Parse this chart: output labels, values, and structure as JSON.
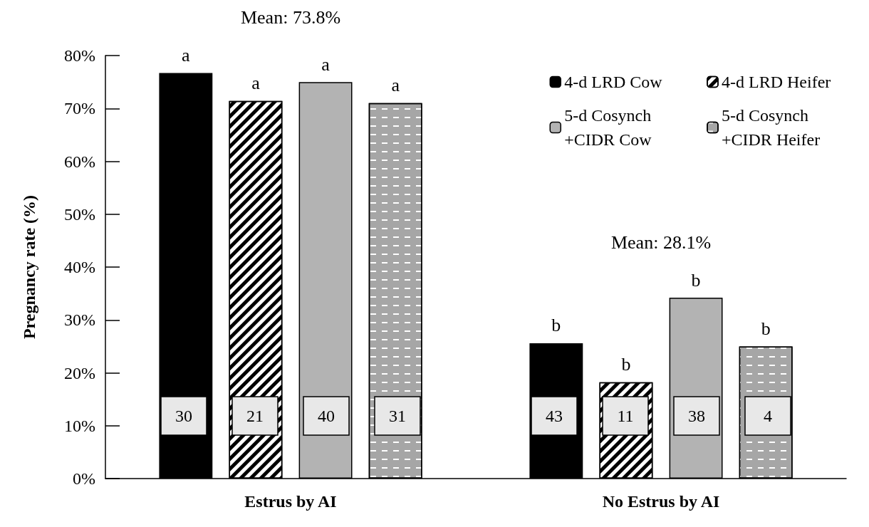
{
  "chart_data": {
    "type": "bar",
    "ylabel": "Pregnancy rate (%)",
    "categories": [
      "Estrus by AI",
      "No Estrus by AI"
    ],
    "series": [
      {
        "name": "4-d LRD Cow",
        "color": "#000000",
        "values": [
          76.7,
          25.6
        ],
        "value_labels": [
          "a",
          "b"
        ]
      },
      {
        "name": "4-d LRD Heifer",
        "color": "#ffffff",
        "values": [
          71.4,
          18.2
        ],
        "value_labels": [
          "a",
          "b"
        ]
      },
      {
        "name": "5-d Cosynch +CIDR Cow",
        "color": "#b3b3b3",
        "values": [
          75.0,
          34.2
        ],
        "value_labels": [
          "a",
          "b"
        ]
      },
      {
        "name": "5-d Cosynch +CIDR Heifer",
        "color": "#a6a6a6",
        "values": [
          71.0,
          25.0
        ],
        "value_labels": [
          "a",
          "b"
        ]
      }
    ],
    "ylim": [
      0,
      80
    ],
    "yticks": [
      {
        "value": 0,
        "label": "0%"
      },
      {
        "value": 10,
        "label": "10%"
      },
      {
        "value": 20,
        "label": "20%"
      },
      {
        "value": 30,
        "label": "30%"
      },
      {
        "value": 40,
        "label": "40%"
      },
      {
        "value": 50,
        "label": "50%"
      },
      {
        "value": 60,
        "label": "60%"
      },
      {
        "value": 70,
        "label": "70%"
      },
      {
        "value": 80,
        "label": "80%"
      }
    ],
    "annotations": [
      "Mean: 73.8%",
      "Mean: 28.1%",
      "30",
      "21",
      "40",
      "31",
      "43",
      "11",
      "38",
      "4"
    ],
    "legend": "top right",
    "grid": false
  }
}
